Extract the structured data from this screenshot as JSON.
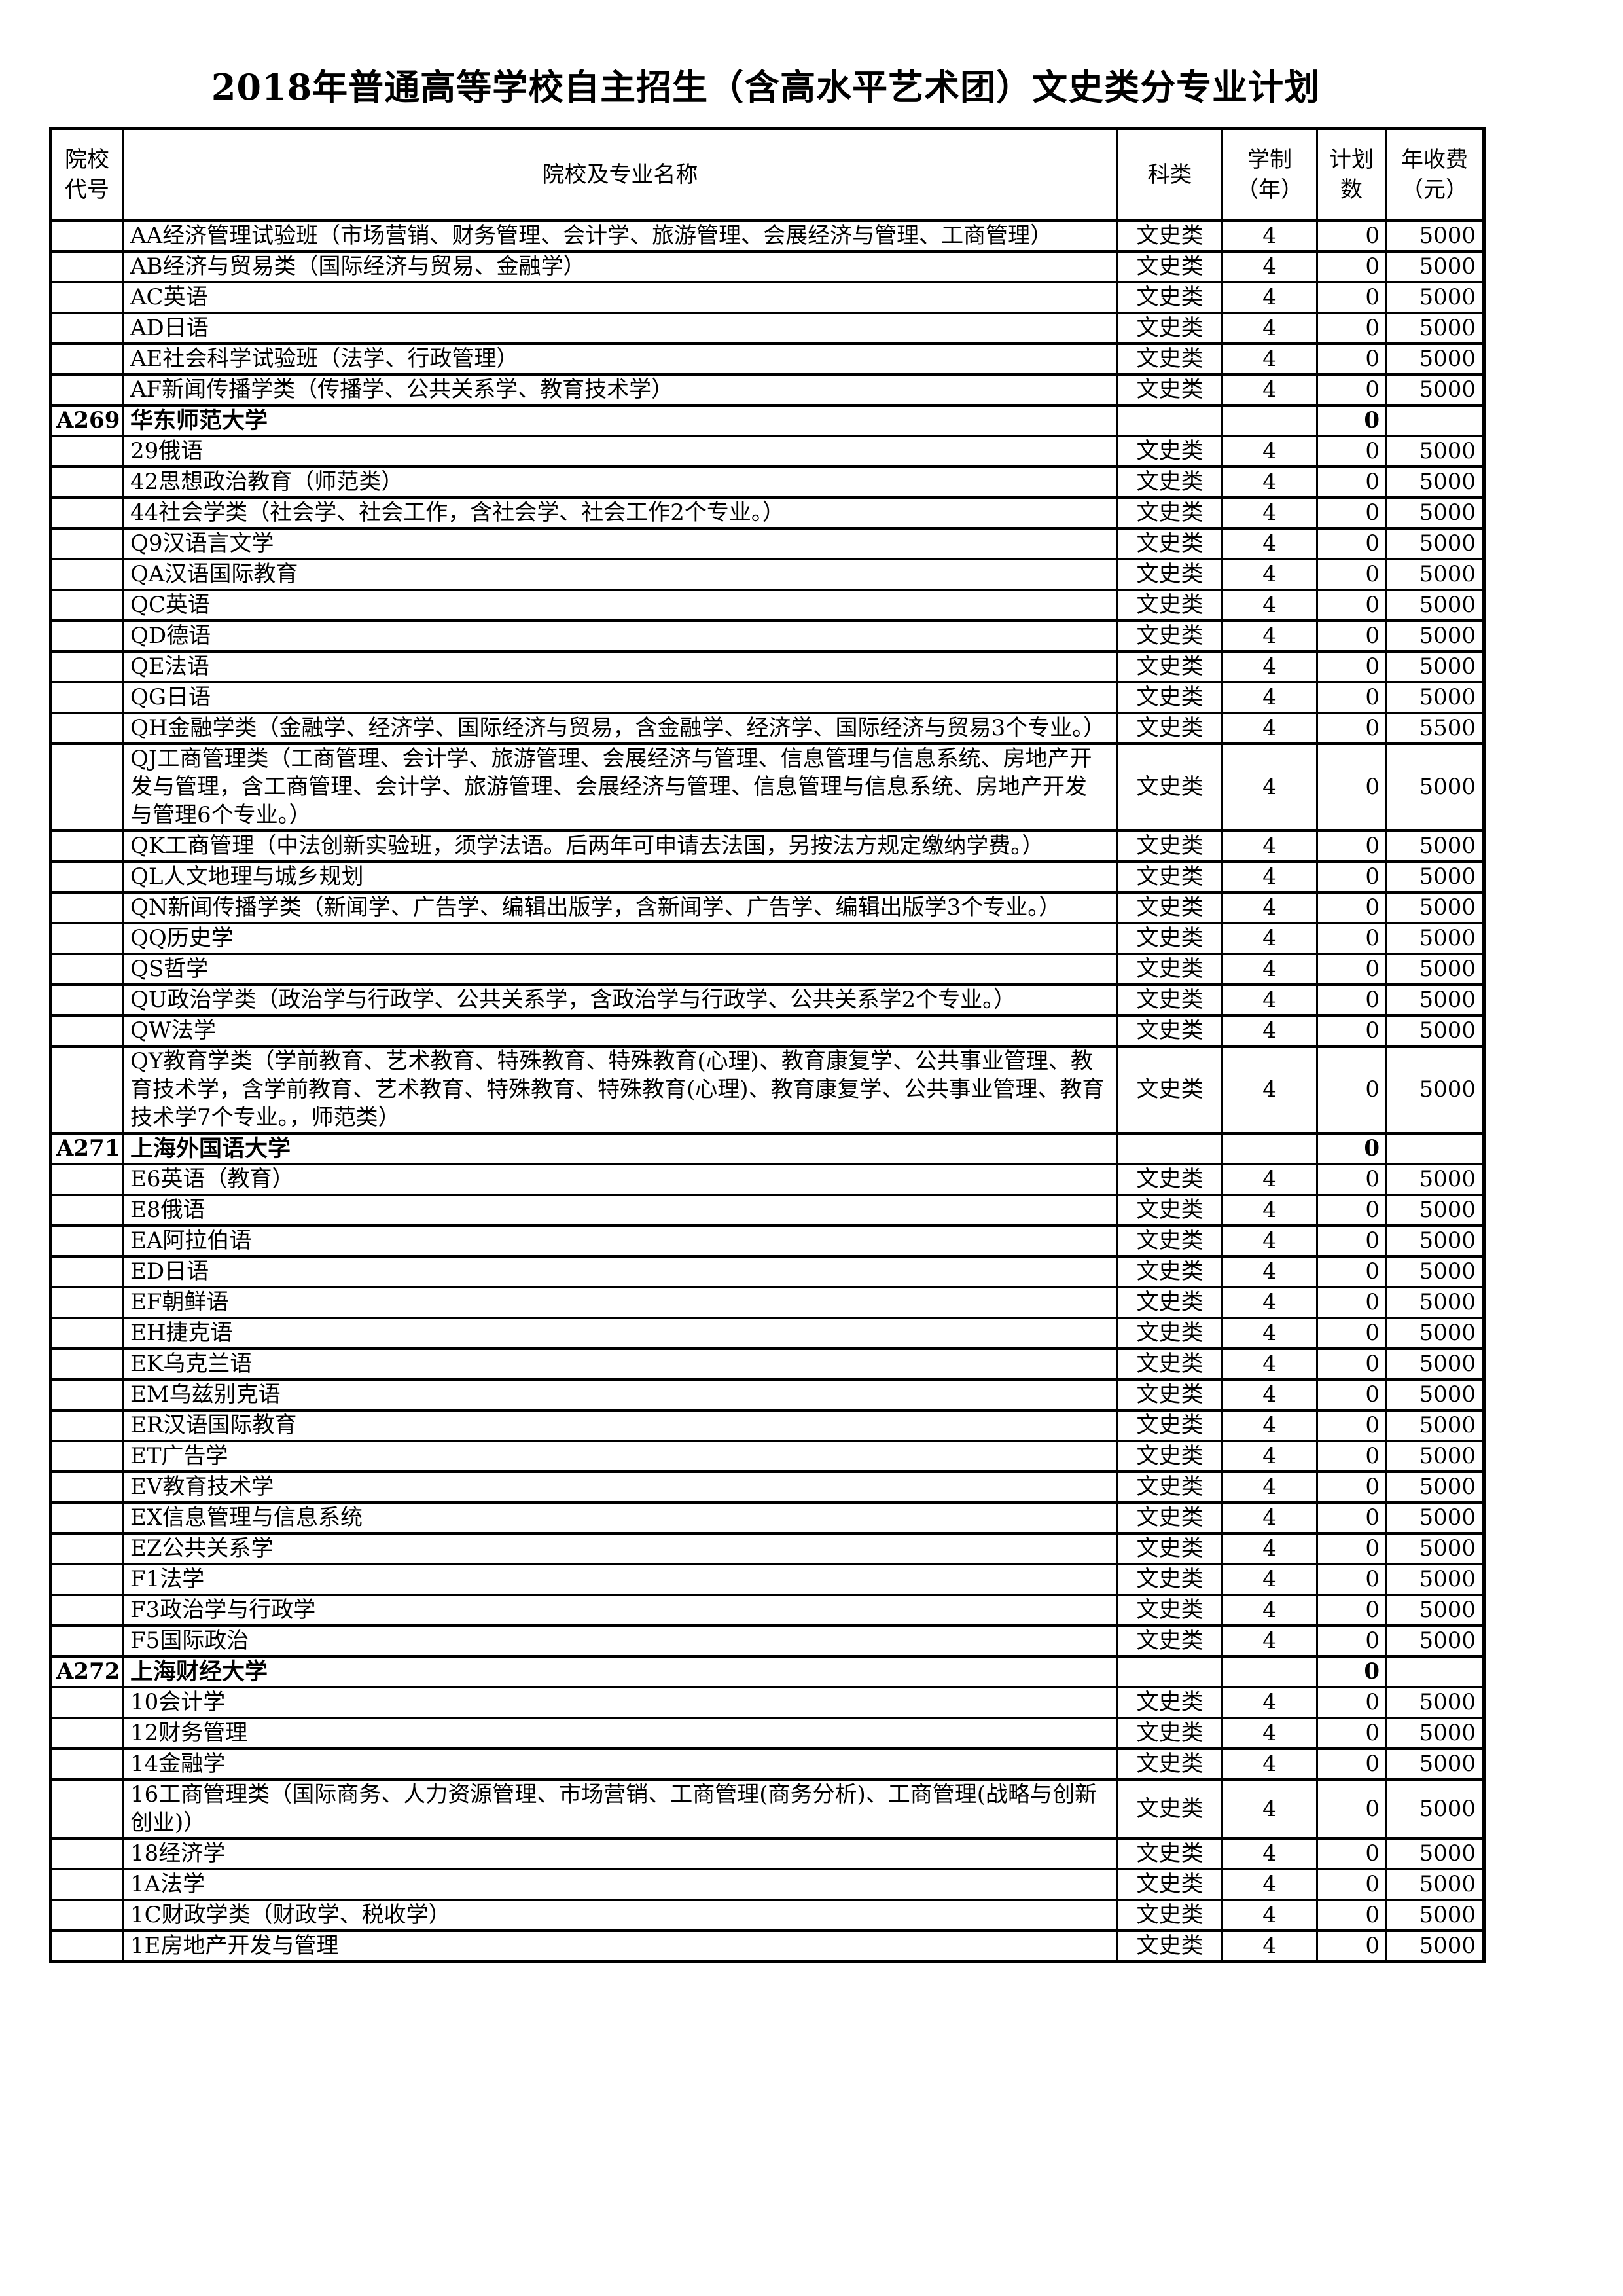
{
  "title": "2018年普通高等学校自主招生（含高水平艺术团）文史类分专业计划",
  "table": {
    "headers": {
      "code": "院校\n代号",
      "name": "院校及专业名称",
      "category": "科类",
      "years": "学制\n（年）",
      "plan": "计划\n数",
      "fee": "年收费\n（元）"
    },
    "rows": [
      {
        "type": "major",
        "code": "",
        "name": "AA经济管理试验班（市场营销、财务管理、会计学、旅游管理、会展经济与管理、工商管理）",
        "category": "文史类",
        "years": "4",
        "plan": "0",
        "fee": "5000"
      },
      {
        "type": "major",
        "code": "",
        "name": "AB经济与贸易类（国际经济与贸易、金融学）",
        "category": "文史类",
        "years": "4",
        "plan": "0",
        "fee": "5000"
      },
      {
        "type": "major",
        "code": "",
        "name": "AC英语",
        "category": "文史类",
        "years": "4",
        "plan": "0",
        "fee": "5000"
      },
      {
        "type": "major",
        "code": "",
        "name": "AD日语",
        "category": "文史类",
        "years": "4",
        "plan": "0",
        "fee": "5000"
      },
      {
        "type": "major",
        "code": "",
        "name": "AE社会科学试验班（法学、行政管理）",
        "category": "文史类",
        "years": "4",
        "plan": "0",
        "fee": "5000"
      },
      {
        "type": "major",
        "code": "",
        "name": "AF新闻传播学类（传播学、公共关系学、教育技术学）",
        "category": "文史类",
        "years": "4",
        "plan": "0",
        "fee": "5000"
      },
      {
        "type": "university",
        "code": "A269",
        "name": "华东师范大学",
        "category": "",
        "years": "",
        "plan": "0",
        "fee": ""
      },
      {
        "type": "major",
        "code": "",
        "name": "29俄语",
        "category": "文史类",
        "years": "4",
        "plan": "0",
        "fee": "5000"
      },
      {
        "type": "major",
        "code": "",
        "name": "42思想政治教育（师范类）",
        "category": "文史类",
        "years": "4",
        "plan": "0",
        "fee": "5000"
      },
      {
        "type": "major",
        "code": "",
        "name": "44社会学类（社会学、社会工作，含社会学、社会工作2个专业。）",
        "category": "文史类",
        "years": "4",
        "plan": "0",
        "fee": "5000"
      },
      {
        "type": "major",
        "code": "",
        "name": "Q9汉语言文学",
        "category": "文史类",
        "years": "4",
        "plan": "0",
        "fee": "5000"
      },
      {
        "type": "major",
        "code": "",
        "name": "QA汉语国际教育",
        "category": "文史类",
        "years": "4",
        "plan": "0",
        "fee": "5000"
      },
      {
        "type": "major",
        "code": "",
        "name": "QC英语",
        "category": "文史类",
        "years": "4",
        "plan": "0",
        "fee": "5000"
      },
      {
        "type": "major",
        "code": "",
        "name": "QD德语",
        "category": "文史类",
        "years": "4",
        "plan": "0",
        "fee": "5000"
      },
      {
        "type": "major",
        "code": "",
        "name": "QE法语",
        "category": "文史类",
        "years": "4",
        "plan": "0",
        "fee": "5000"
      },
      {
        "type": "major",
        "code": "",
        "name": "QG日语",
        "category": "文史类",
        "years": "4",
        "plan": "0",
        "fee": "5000"
      },
      {
        "type": "major",
        "code": "",
        "name": "QH金融学类（金融学、经济学、国际经济与贸易，含金融学、经济学、国际经济与贸易3个专业。）",
        "category": "文史类",
        "years": "4",
        "plan": "0",
        "fee": "5500"
      },
      {
        "type": "major",
        "code": "",
        "name": "QJ工商管理类（工商管理、会计学、旅游管理、会展经济与管理、信息管理与信息系统、房地产开发与管理，含工商管理、会计学、旅游管理、会展经济与管理、信息管理与信息系统、房地产开发与管理6个专业。）",
        "category": "文史类",
        "years": "4",
        "plan": "0",
        "fee": "5000"
      },
      {
        "type": "major",
        "code": "",
        "name": "QK工商管理（中法创新实验班，须学法语。后两年可申请去法国，另按法方规定缴纳学费。）",
        "category": "文史类",
        "years": "4",
        "plan": "0",
        "fee": "5000"
      },
      {
        "type": "major",
        "code": "",
        "name": "QL人文地理与城乡规划",
        "category": "文史类",
        "years": "4",
        "plan": "0",
        "fee": "5000"
      },
      {
        "type": "major",
        "code": "",
        "name": "QN新闻传播学类（新闻学、广告学、编辑出版学，含新闻学、广告学、编辑出版学3个专业。）",
        "category": "文史类",
        "years": "4",
        "plan": "0",
        "fee": "5000"
      },
      {
        "type": "major",
        "code": "",
        "name": "QQ历史学",
        "category": "文史类",
        "years": "4",
        "plan": "0",
        "fee": "5000"
      },
      {
        "type": "major",
        "code": "",
        "name": "QS哲学",
        "category": "文史类",
        "years": "4",
        "plan": "0",
        "fee": "5000"
      },
      {
        "type": "major",
        "code": "",
        "name": "QU政治学类（政治学与行政学、公共关系学，含政治学与行政学、公共关系学2个专业。）",
        "category": "文史类",
        "years": "4",
        "plan": "0",
        "fee": "5000"
      },
      {
        "type": "major",
        "code": "",
        "name": "QW法学",
        "category": "文史类",
        "years": "4",
        "plan": "0",
        "fee": "5000"
      },
      {
        "type": "major",
        "code": "",
        "name": "QY教育学类（学前教育、艺术教育、特殊教育、特殊教育(心理)、教育康复学、公共事业管理、教育技术学，含学前教育、艺术教育、特殊教育、特殊教育(心理)、教育康复学、公共事业管理、教育技术学7个专业。，师范类）",
        "category": "文史类",
        "years": "4",
        "plan": "0",
        "fee": "5000"
      },
      {
        "type": "university",
        "code": "A271",
        "name": "上海外国语大学",
        "category": "",
        "years": "",
        "plan": "0",
        "fee": ""
      },
      {
        "type": "major",
        "code": "",
        "name": "E6英语（教育）",
        "category": "文史类",
        "years": "4",
        "plan": "0",
        "fee": "5000"
      },
      {
        "type": "major",
        "code": "",
        "name": "E8俄语",
        "category": "文史类",
        "years": "4",
        "plan": "0",
        "fee": "5000"
      },
      {
        "type": "major",
        "code": "",
        "name": "EA阿拉伯语",
        "category": "文史类",
        "years": "4",
        "plan": "0",
        "fee": "5000"
      },
      {
        "type": "major",
        "code": "",
        "name": "ED日语",
        "category": "文史类",
        "years": "4",
        "plan": "0",
        "fee": "5000"
      },
      {
        "type": "major",
        "code": "",
        "name": "EF朝鲜语",
        "category": "文史类",
        "years": "4",
        "plan": "0",
        "fee": "5000"
      },
      {
        "type": "major",
        "code": "",
        "name": "EH捷克语",
        "category": "文史类",
        "years": "4",
        "plan": "0",
        "fee": "5000"
      },
      {
        "type": "major",
        "code": "",
        "name": "EK乌克兰语",
        "category": "文史类",
        "years": "4",
        "plan": "0",
        "fee": "5000"
      },
      {
        "type": "major",
        "code": "",
        "name": "EM乌兹别克语",
        "category": "文史类",
        "years": "4",
        "plan": "0",
        "fee": "5000"
      },
      {
        "type": "major",
        "code": "",
        "name": "ER汉语国际教育",
        "category": "文史类",
        "years": "4",
        "plan": "0",
        "fee": "5000"
      },
      {
        "type": "major",
        "code": "",
        "name": "ET广告学",
        "category": "文史类",
        "years": "4",
        "plan": "0",
        "fee": "5000"
      },
      {
        "type": "major",
        "code": "",
        "name": "EV教育技术学",
        "category": "文史类",
        "years": "4",
        "plan": "0",
        "fee": "5000"
      },
      {
        "type": "major",
        "code": "",
        "name": "EX信息管理与信息系统",
        "category": "文史类",
        "years": "4",
        "plan": "0",
        "fee": "5000"
      },
      {
        "type": "major",
        "code": "",
        "name": "EZ公共关系学",
        "category": "文史类",
        "years": "4",
        "plan": "0",
        "fee": "5000"
      },
      {
        "type": "major",
        "code": "",
        "name": "F1法学",
        "category": "文史类",
        "years": "4",
        "plan": "0",
        "fee": "5000"
      },
      {
        "type": "major",
        "code": "",
        "name": "F3政治学与行政学",
        "category": "文史类",
        "years": "4",
        "plan": "0",
        "fee": "5000"
      },
      {
        "type": "major",
        "code": "",
        "name": "F5国际政治",
        "category": "文史类",
        "years": "4",
        "plan": "0",
        "fee": "5000"
      },
      {
        "type": "university",
        "code": "A272",
        "name": "上海财经大学",
        "category": "",
        "years": "",
        "plan": "0",
        "fee": ""
      },
      {
        "type": "major",
        "code": "",
        "name": "10会计学",
        "category": "文史类",
        "years": "4",
        "plan": "0",
        "fee": "5000"
      },
      {
        "type": "major",
        "code": "",
        "name": "12财务管理",
        "category": "文史类",
        "years": "4",
        "plan": "0",
        "fee": "5000"
      },
      {
        "type": "major",
        "code": "",
        "name": "14金融学",
        "category": "文史类",
        "years": "4",
        "plan": "0",
        "fee": "5000"
      },
      {
        "type": "major",
        "code": "",
        "name": "16工商管理类（国际商务、人力资源管理、市场营销、工商管理(商务分析)、工商管理(战略与创新创业)）",
        "category": "文史类",
        "years": "4",
        "plan": "0",
        "fee": "5000"
      },
      {
        "type": "major",
        "code": "",
        "name": "18经济学",
        "category": "文史类",
        "years": "4",
        "plan": "0",
        "fee": "5000"
      },
      {
        "type": "major",
        "code": "",
        "name": "1A法学",
        "category": "文史类",
        "years": "4",
        "plan": "0",
        "fee": "5000"
      },
      {
        "type": "major",
        "code": "",
        "name": "1C财政学类（财政学、税收学）",
        "category": "文史类",
        "years": "4",
        "plan": "0",
        "fee": "5000"
      },
      {
        "type": "major",
        "code": "",
        "name": "1E房地产开发与管理",
        "category": "文史类",
        "years": "4",
        "plan": "0",
        "fee": "5000"
      }
    ]
  }
}
